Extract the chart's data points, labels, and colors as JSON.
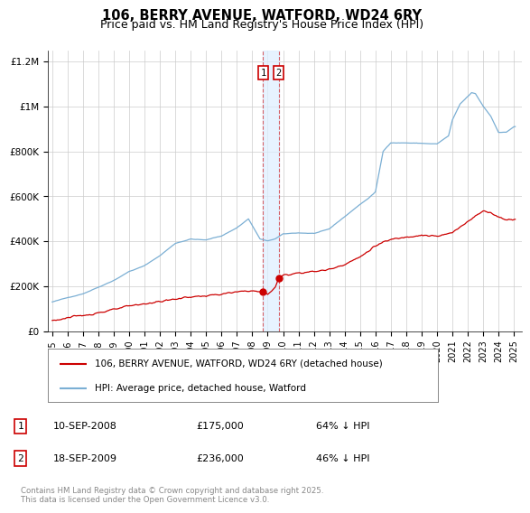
{
  "title": "106, BERRY AVENUE, WATFORD, WD24 6RY",
  "subtitle": "Price paid vs. HM Land Registry's House Price Index (HPI)",
  "title_fontsize": 10.5,
  "subtitle_fontsize": 9,
  "background_color": "#ffffff",
  "plot_bg_color": "#ffffff",
  "grid_color": "#cccccc",
  "red_color": "#cc0000",
  "blue_color": "#7bafd4",
  "shade_color": "#ddeeff",
  "ylim": [
    0,
    1250000
  ],
  "yticks": [
    0,
    200000,
    400000,
    600000,
    800000,
    1000000,
    1200000
  ],
  "ytick_labels": [
    "£0",
    "£200K",
    "£400K",
    "£600K",
    "£800K",
    "£1M",
    "£1.2M"
  ],
  "xlim_start": 1994.7,
  "xlim_end": 2025.5,
  "purchase1_date": 2008.7,
  "purchase1_price": 175000,
  "purchase2_date": 2009.72,
  "purchase2_price": 236000,
  "legend_label_red": "106, BERRY AVENUE, WATFORD, WD24 6RY (detached house)",
  "legend_label_blue": "HPI: Average price, detached house, Watford",
  "annotation1_num": "1",
  "annotation1_date": "10-SEP-2008",
  "annotation1_price": "£175,000",
  "annotation1_hpi": "64% ↓ HPI",
  "annotation2_num": "2",
  "annotation2_date": "18-SEP-2009",
  "annotation2_price": "£236,000",
  "annotation2_hpi": "46% ↓ HPI",
  "footer_text": "Contains HM Land Registry data © Crown copyright and database right 2025.\nThis data is licensed under the Open Government Licence v3.0."
}
